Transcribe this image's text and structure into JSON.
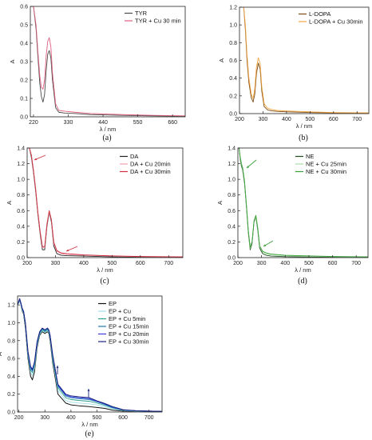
{
  "chart_data": [
    {
      "id": "a",
      "type": "line",
      "panel_label": "(a)",
      "xlabel": "λ / nm",
      "ylabel": "A",
      "xlim": [
        210,
        700
      ],
      "ylim": [
        0,
        0.6
      ],
      "xticks": [
        220,
        330,
        440,
        550,
        660
      ],
      "yticks": [
        0.0,
        0.1,
        0.2,
        0.3,
        0.4,
        0.5,
        0.6
      ],
      "ytick_labels": [
        "0.0",
        "0.1",
        "0.2",
        "0.3",
        "0.4",
        "0.5",
        "0.6"
      ],
      "legend_position": "top-right",
      "series": [
        {
          "name": "TYR",
          "color": "#4a4a4a",
          "width": 0.9,
          "x": [
            210,
            220,
            228,
            235,
            240,
            245,
            250,
            255,
            260,
            265,
            270,
            275,
            280,
            290,
            300,
            320,
            350,
            400,
            500,
            600,
            700
          ],
          "y": [
            0.6,
            0.6,
            0.48,
            0.3,
            0.18,
            0.11,
            0.08,
            0.12,
            0.25,
            0.34,
            0.36,
            0.32,
            0.2,
            0.05,
            0.025,
            0.02,
            0.018,
            0.012,
            0.008,
            0.005,
            0.003
          ]
        },
        {
          "name": "TYR + Cu 30 min",
          "color": "#e06080",
          "width": 0.9,
          "x": [
            210,
            220,
            228,
            235,
            240,
            245,
            250,
            255,
            260,
            265,
            270,
            275,
            280,
            290,
            300,
            320,
            350,
            400,
            500,
            600,
            700
          ],
          "y": [
            0.6,
            0.6,
            0.5,
            0.33,
            0.22,
            0.16,
            0.15,
            0.2,
            0.33,
            0.41,
            0.43,
            0.38,
            0.24,
            0.07,
            0.035,
            0.03,
            0.025,
            0.018,
            0.012,
            0.008,
            0.005
          ]
        }
      ]
    },
    {
      "id": "b",
      "type": "line",
      "panel_label": "(b)",
      "xlabel": "λ / nm",
      "ylabel": "A",
      "xlim": [
        200,
        750
      ],
      "ylim": [
        0,
        1.2
      ],
      "xticks": [
        200,
        300,
        400,
        500,
        600,
        700
      ],
      "yticks": [
        0.0,
        0.2,
        0.4,
        0.6,
        0.8,
        1.0,
        1.2
      ],
      "ytick_labels": [
        "0.0",
        "0.2",
        "0.4",
        "0.6",
        "0.8",
        "1.0",
        "1.2"
      ],
      "legend_position": "top-right",
      "series": [
        {
          "name": "L-DOPA",
          "color": "#7a4a12",
          "width": 0.9,
          "x": [
            200,
            210,
            218,
            225,
            232,
            240,
            250,
            258,
            265,
            272,
            280,
            288,
            295,
            305,
            320,
            340,
            360,
            400,
            500,
            600,
            750
          ],
          "y": [
            1.2,
            1.2,
            1.2,
            0.95,
            0.6,
            0.35,
            0.18,
            0.13,
            0.22,
            0.45,
            0.57,
            0.5,
            0.25,
            0.08,
            0.04,
            0.03,
            0.025,
            0.02,
            0.012,
            0.008,
            0.005
          ]
        },
        {
          "name": "L-DOPA + Cu 30min",
          "color": "#f2a540",
          "width": 0.9,
          "x": [
            200,
            210,
            218,
            225,
            232,
            240,
            250,
            258,
            265,
            272,
            280,
            288,
            295,
            305,
            320,
            340,
            360,
            400,
            500,
            600,
            750
          ],
          "y": [
            1.2,
            1.2,
            1.2,
            1.0,
            0.66,
            0.4,
            0.22,
            0.17,
            0.28,
            0.52,
            0.63,
            0.56,
            0.3,
            0.11,
            0.06,
            0.045,
            0.035,
            0.03,
            0.02,
            0.012,
            0.008
          ]
        }
      ]
    },
    {
      "id": "c",
      "type": "line",
      "panel_label": "(c)",
      "xlabel": "λ / nm",
      "ylabel": "A",
      "xlim": [
        200,
        750
      ],
      "ylim": [
        0,
        1.4
      ],
      "xticks": [
        200,
        300,
        400,
        500,
        600,
        700
      ],
      "yticks": [
        0.0,
        0.2,
        0.4,
        0.6,
        0.8,
        1.0,
        1.2,
        1.4
      ],
      "ytick_labels": [
        "0.0",
        "0.2",
        "0.4",
        "0.6",
        "0.8",
        "1.0",
        "1.2",
        "1.4"
      ],
      "legend_position": "top-right",
      "series": [
        {
          "name": "DA",
          "color": "#222222",
          "width": 0.9,
          "x": [
            200,
            208,
            215,
            222,
            230,
            238,
            246,
            254,
            262,
            270,
            278,
            286,
            294,
            305,
            320,
            340,
            400,
            500,
            600,
            750
          ],
          "y": [
            1.4,
            1.4,
            1.28,
            1.1,
            0.85,
            0.55,
            0.3,
            0.1,
            0.1,
            0.4,
            0.58,
            0.45,
            0.15,
            0.05,
            0.03,
            0.025,
            0.02,
            0.01,
            0.006,
            0.003
          ]
        },
        {
          "name": "DA + Cu 20min",
          "color": "#f0a0b0",
          "width": 0.9,
          "x": [
            200,
            208,
            215,
            222,
            230,
            238,
            246,
            254,
            262,
            270,
            278,
            286,
            294,
            305,
            320,
            340,
            400,
            500,
            600,
            750
          ],
          "y": [
            1.4,
            1.4,
            1.3,
            1.12,
            0.87,
            0.57,
            0.32,
            0.13,
            0.13,
            0.42,
            0.59,
            0.47,
            0.18,
            0.08,
            0.05,
            0.04,
            0.03,
            0.02,
            0.012,
            0.008
          ]
        },
        {
          "name": "DA + Cu 30min",
          "color": "#d03040",
          "width": 0.9,
          "x": [
            200,
            208,
            215,
            222,
            230,
            238,
            246,
            254,
            262,
            270,
            278,
            286,
            294,
            305,
            320,
            340,
            400,
            500,
            600,
            750
          ],
          "y": [
            1.4,
            1.4,
            1.31,
            1.13,
            0.88,
            0.58,
            0.33,
            0.14,
            0.14,
            0.43,
            0.6,
            0.48,
            0.2,
            0.09,
            0.06,
            0.05,
            0.035,
            0.022,
            0.014,
            0.01
          ]
        }
      ]
    },
    {
      "id": "d",
      "type": "line",
      "panel_label": "(d)",
      "xlabel": "λ / nm",
      "ylabel": "A",
      "xlim": [
        200,
        750
      ],
      "ylim": [
        0,
        1.4
      ],
      "xticks": [
        200,
        300,
        400,
        500,
        600,
        700
      ],
      "yticks": [
        0.0,
        0.2,
        0.4,
        0.6,
        0.8,
        1.0,
        1.2,
        1.4
      ],
      "ytick_labels": [
        "0.0",
        "0.2",
        "0.4",
        "0.6",
        "0.8",
        "1.0",
        "1.2",
        "1.4"
      ],
      "legend_position": "top-right",
      "series": [
        {
          "name": "NE",
          "color": "#1e4a1e",
          "width": 0.9,
          "x": [
            200,
            205,
            210,
            215,
            220,
            228,
            236,
            244,
            252,
            260,
            268,
            276,
            284,
            292,
            305,
            320,
            340,
            400,
            500,
            600,
            750
          ],
          "y": [
            1.4,
            1.4,
            1.25,
            1.17,
            1.12,
            0.95,
            0.65,
            0.32,
            0.1,
            0.18,
            0.45,
            0.52,
            0.35,
            0.12,
            0.05,
            0.03,
            0.02,
            0.012,
            0.008,
            0.005,
            0.003
          ]
        },
        {
          "name": "NE + Cu 25min",
          "color": "#a8e0a8",
          "width": 0.9,
          "x": [
            200,
            205,
            210,
            215,
            220,
            228,
            236,
            244,
            252,
            260,
            268,
            276,
            284,
            292,
            305,
            320,
            340,
            400,
            500,
            600,
            750
          ],
          "y": [
            1.4,
            1.4,
            1.27,
            1.19,
            1.14,
            0.97,
            0.67,
            0.34,
            0.12,
            0.2,
            0.46,
            0.53,
            0.37,
            0.14,
            0.07,
            0.05,
            0.035,
            0.025,
            0.018,
            0.012,
            0.008
          ]
        },
        {
          "name": "NE + Cu 30min",
          "color": "#3aa13a",
          "width": 0.9,
          "x": [
            200,
            205,
            210,
            215,
            220,
            228,
            236,
            244,
            252,
            260,
            268,
            276,
            284,
            292,
            305,
            320,
            340,
            400,
            500,
            600,
            750
          ],
          "y": [
            1.4,
            1.4,
            1.28,
            1.2,
            1.15,
            0.98,
            0.68,
            0.35,
            0.13,
            0.21,
            0.47,
            0.54,
            0.38,
            0.15,
            0.08,
            0.06,
            0.045,
            0.03,
            0.022,
            0.015,
            0.01
          ]
        }
      ]
    },
    {
      "id": "e",
      "type": "line",
      "panel_label": "(e)",
      "xlabel": "λ / nm",
      "ylabel": "A",
      "xlim": [
        195,
        750
      ],
      "ylim": [
        0,
        1.3
      ],
      "xticks": [
        200,
        300,
        400,
        500,
        600,
        700
      ],
      "yticks": [
        0.0,
        0.2,
        0.4,
        0.6,
        0.8,
        1.0,
        1.2
      ],
      "ytick_labels": [
        "0.0",
        "0.2",
        "0.4",
        "0.6",
        "0.8",
        "1.0",
        "1.2"
      ],
      "legend_position": "top-right",
      "series": [
        {
          "name": "EP",
          "color": "#111111",
          "width": 1.0,
          "x": [
            195,
            203,
            208,
            213,
            218,
            225,
            235,
            245,
            252,
            260,
            270,
            280,
            290,
            300,
            310,
            315,
            320,
            330,
            350,
            380,
            400,
            430,
            470,
            500,
            530,
            560,
            600,
            650,
            700,
            750
          ],
          "y": [
            1.2,
            1.25,
            1.2,
            1.13,
            1.1,
            0.95,
            0.6,
            0.4,
            0.36,
            0.45,
            0.72,
            0.86,
            0.9,
            0.88,
            0.9,
            0.88,
            0.8,
            0.55,
            0.2,
            0.1,
            0.08,
            0.07,
            0.06,
            0.05,
            0.04,
            0.02,
            0.01,
            0.008,
            0.005,
            0.003
          ]
        },
        {
          "name": "EP + Cu",
          "color": "#9fdfe8",
          "width": 0.9,
          "x": [
            195,
            203,
            208,
            213,
            218,
            225,
            235,
            245,
            252,
            260,
            270,
            280,
            290,
            300,
            310,
            315,
            320,
            330,
            350,
            380,
            400,
            430,
            470,
            500,
            530,
            560,
            600,
            650,
            700,
            750
          ],
          "y": [
            1.2,
            1.25,
            1.2,
            1.14,
            1.11,
            0.97,
            0.63,
            0.44,
            0.41,
            0.49,
            0.74,
            0.87,
            0.91,
            0.89,
            0.91,
            0.89,
            0.82,
            0.58,
            0.24,
            0.13,
            0.11,
            0.1,
            0.09,
            0.08,
            0.06,
            0.035,
            0.015,
            0.01,
            0.006,
            0.004
          ]
        },
        {
          "name": "EP + Cu 5min",
          "color": "#2a9d8f",
          "width": 0.9,
          "x": [
            195,
            203,
            208,
            213,
            218,
            225,
            235,
            245,
            252,
            260,
            270,
            280,
            290,
            300,
            310,
            315,
            320,
            330,
            350,
            380,
            400,
            430,
            470,
            500,
            530,
            560,
            600,
            650,
            700,
            750
          ],
          "y": [
            1.2,
            1.26,
            1.21,
            1.15,
            1.12,
            0.98,
            0.65,
            0.47,
            0.44,
            0.52,
            0.76,
            0.88,
            0.92,
            0.9,
            0.92,
            0.9,
            0.83,
            0.6,
            0.27,
            0.16,
            0.14,
            0.13,
            0.12,
            0.1,
            0.075,
            0.045,
            0.02,
            0.012,
            0.008,
            0.005
          ]
        },
        {
          "name": "EP + Cu 15min",
          "color": "#1f77b4",
          "width": 0.9,
          "x": [
            195,
            203,
            208,
            213,
            218,
            225,
            235,
            245,
            252,
            260,
            270,
            280,
            290,
            300,
            310,
            315,
            320,
            330,
            350,
            380,
            400,
            430,
            470,
            500,
            530,
            560,
            600,
            650,
            700,
            750
          ],
          "y": [
            1.2,
            1.26,
            1.21,
            1.15,
            1.12,
            0.99,
            0.66,
            0.49,
            0.46,
            0.54,
            0.77,
            0.89,
            0.93,
            0.91,
            0.93,
            0.91,
            0.84,
            0.62,
            0.29,
            0.18,
            0.16,
            0.15,
            0.14,
            0.115,
            0.085,
            0.05,
            0.022,
            0.013,
            0.009,
            0.006
          ]
        },
        {
          "name": "EP + Cu 20min",
          "color": "#3b3be0",
          "width": 0.9,
          "x": [
            195,
            203,
            208,
            213,
            218,
            225,
            235,
            245,
            252,
            260,
            270,
            280,
            290,
            300,
            310,
            315,
            320,
            330,
            350,
            380,
            400,
            430,
            470,
            500,
            530,
            560,
            600,
            650,
            700,
            750
          ],
          "y": [
            1.2,
            1.27,
            1.22,
            1.16,
            1.13,
            1.0,
            0.67,
            0.5,
            0.47,
            0.55,
            0.78,
            0.9,
            0.94,
            0.92,
            0.94,
            0.92,
            0.85,
            0.63,
            0.3,
            0.19,
            0.17,
            0.16,
            0.15,
            0.12,
            0.09,
            0.055,
            0.024,
            0.014,
            0.01,
            0.007
          ]
        },
        {
          "name": "EP + Cu 30min",
          "color": "#1a237e",
          "width": 1.0,
          "x": [
            195,
            203,
            208,
            213,
            218,
            225,
            235,
            245,
            252,
            260,
            270,
            280,
            290,
            300,
            310,
            315,
            320,
            330,
            350,
            380,
            400,
            430,
            470,
            500,
            530,
            560,
            600,
            650,
            700,
            750
          ],
          "y": [
            1.2,
            1.27,
            1.22,
            1.16,
            1.13,
            1.0,
            0.68,
            0.51,
            0.48,
            0.56,
            0.79,
            0.9,
            0.94,
            0.92,
            0.94,
            0.92,
            0.86,
            0.64,
            0.31,
            0.2,
            0.18,
            0.17,
            0.16,
            0.125,
            0.095,
            0.06,
            0.026,
            0.015,
            0.01,
            0.007
          ]
        }
      ]
    }
  ]
}
